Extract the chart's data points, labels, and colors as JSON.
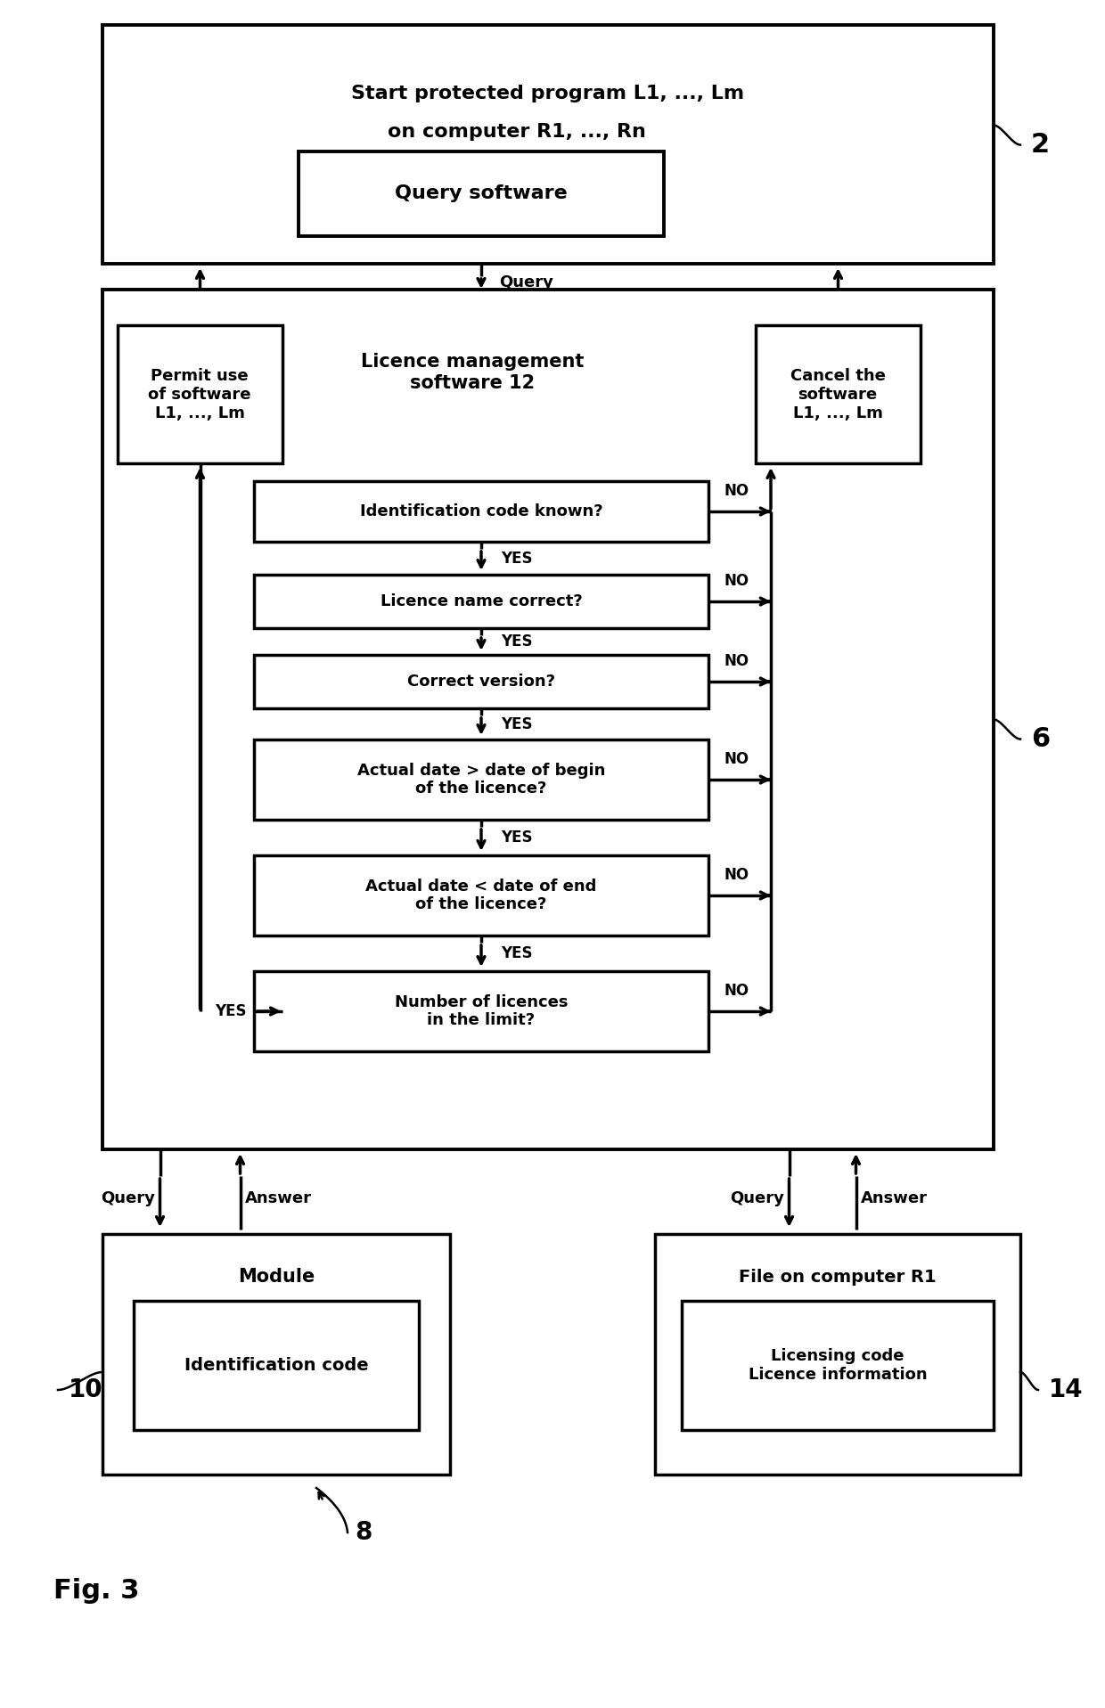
{
  "bg_color": "#ffffff",
  "fig_width": 12.4,
  "fig_height": 19.17,
  "top_text1": "Start protected program L1, ..., Lm",
  "top_text2": "on computer R1, ..., Rn",
  "query_sw": "Query software",
  "label_2": "2",
  "label_6": "6",
  "label_8": "8",
  "label_10": "10",
  "label_14": "14",
  "fig_label": "Fig. 3",
  "query_lbl": "Query",
  "licence_mgmt": "Licence management\nsoftware 12",
  "permit": "Permit use\nof software\nL1, ..., Lm",
  "cancel": "Cancel the\nsoftware\nL1, ..., Lm",
  "decisions": [
    "Identification code known?",
    "Licence name correct?",
    "Correct version?",
    "Actual date > date of begin\nof the licence?",
    "Actual date < date of end\nof the licence?",
    "Number of licences\nin the limit?"
  ],
  "yes": "YES",
  "no": "NO",
  "query": "Query",
  "answer": "Answer",
  "module_outer": "Module",
  "module_inner": "Identification code",
  "file_outer": "File on computer R1",
  "file_inner": "Licensing code\nLicence information"
}
